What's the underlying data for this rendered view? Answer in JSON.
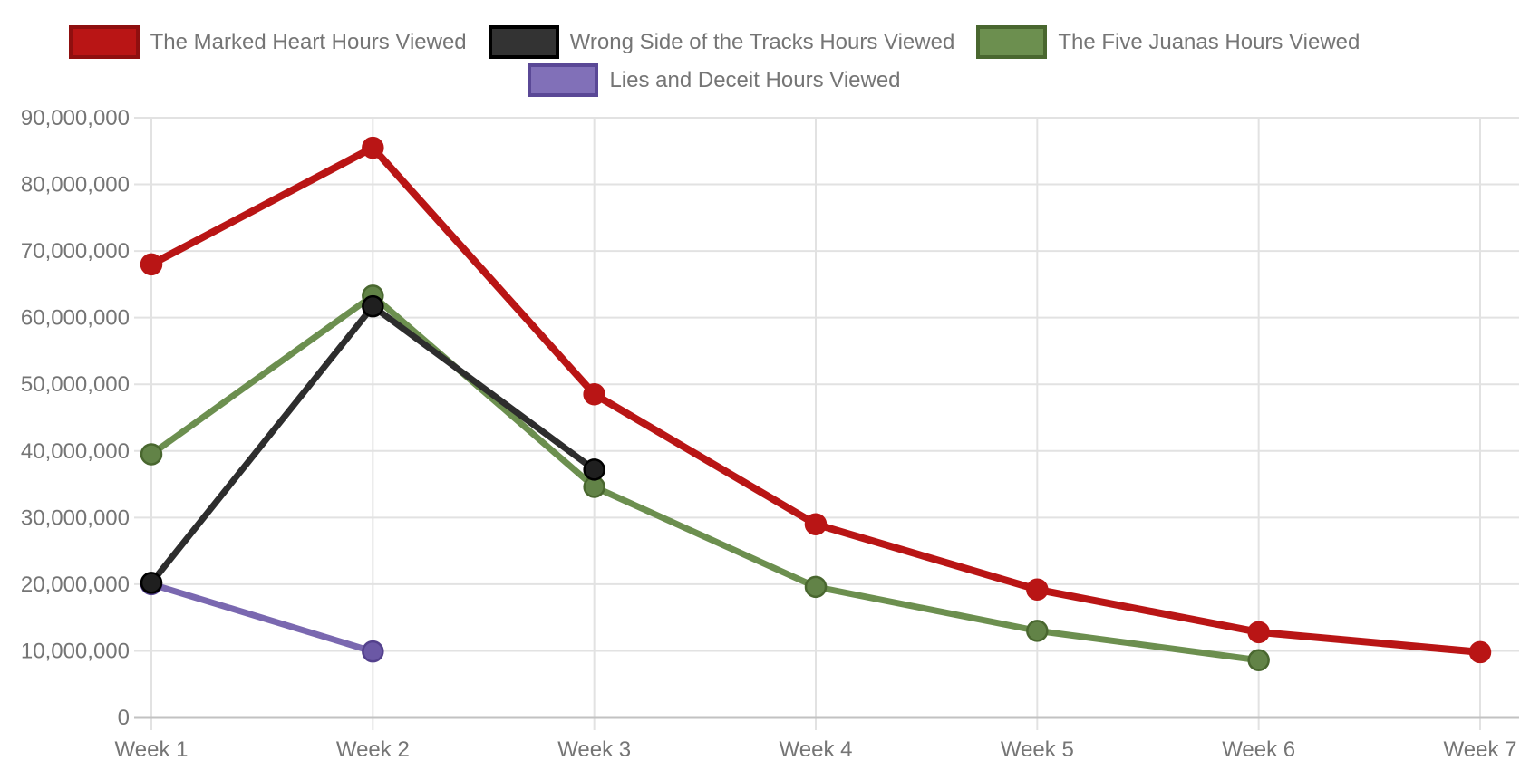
{
  "legend": {
    "items": [
      {
        "key": "marked-heart",
        "label": "The Marked Heart Hours Viewed",
        "fill": "#b91515",
        "border": "#8f0f0f"
      },
      {
        "key": "wrong-side",
        "label": "Wrong Side of the Tracks Hours Viewed",
        "fill": "#333333",
        "border": "#000000"
      },
      {
        "key": "five-juanas",
        "label": "The Five Juanas Hours Viewed",
        "fill": "#6c8f4f",
        "border": "#49672f"
      },
      {
        "key": "lies-deceit",
        "label": "Lies and Deceit Hours Viewed",
        "fill": "#8170b8",
        "border": "#5a4896"
      }
    ]
  },
  "chart_data": {
    "type": "line",
    "categories": [
      "Week 1",
      "Week 2",
      "Week 3",
      "Week 4",
      "Week 5",
      "Week 6",
      "Week 7"
    ],
    "series": [
      {
        "key": "marked-heart",
        "name": "The Marked Heart Hours Viewed",
        "line_color": "#b91515",
        "point_fill": "#b91515",
        "point_ring": "#b91515",
        "values": [
          68000000,
          85500000,
          48500000,
          29000000,
          19200000,
          12800000,
          9800000
        ]
      },
      {
        "key": "wrong-side",
        "name": "Wrong Side of the Tracks Hours Viewed",
        "line_color": "#2d2d2d",
        "point_fill": "#1f1f1f",
        "point_ring": "#000000",
        "values": [
          20200000,
          61700000,
          37200000,
          null,
          null,
          null,
          null
        ]
      },
      {
        "key": "five-juanas",
        "name": "The Five Juanas Hours Viewed",
        "line_color": "#6c8f4f",
        "point_fill": "#628347",
        "point_ring": "#49672f",
        "values": [
          39500000,
          63300000,
          34600000,
          19600000,
          13000000,
          8600000,
          null
        ]
      },
      {
        "key": "lies-deceit",
        "name": "Lies and Deceit Hours Viewed",
        "line_color": "#7a68b0",
        "point_fill": "#6b58a5",
        "point_ring": "#54418d",
        "values": [
          20000000,
          9900000,
          null,
          null,
          null,
          null,
          null
        ]
      }
    ],
    "ylim": [
      0,
      90000000
    ],
    "y_ticks": [
      0,
      10000000,
      20000000,
      30000000,
      40000000,
      50000000,
      60000000,
      70000000,
      80000000,
      90000000
    ],
    "y_tick_labels": [
      "0",
      "10,000,000",
      "20,000,000",
      "30,000,000",
      "40,000,000",
      "50,000,000",
      "60,000,000",
      "70,000,000",
      "80,000,000",
      "90,000,000"
    ],
    "grid": true,
    "legend_position": "top"
  },
  "colors": {
    "background": "#ffffff",
    "gridline": "#e2e2e2",
    "axis_line": "#c2c2c2",
    "tick_label": "#757575"
  }
}
